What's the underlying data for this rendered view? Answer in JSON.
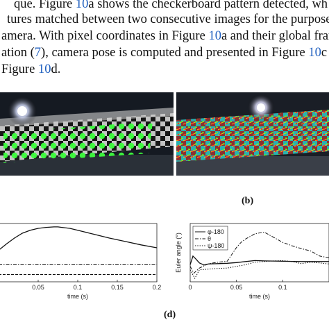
{
  "text_lines": [
    {
      "segments": [
        {
          "text": "que.  Figure ",
          "ref": false
        },
        {
          "text": "10",
          "ref": true
        },
        {
          "text": "a shows the checkerboard pattern detected, wh",
          "ref": false
        }
      ]
    },
    {
      "segments": [
        {
          "text": "tures matched between two consecutive images for the purpose o",
          "ref": false
        }
      ]
    },
    {
      "segments": [
        {
          "text": "amera.  With pixel coordinates in Figure ",
          "ref": false
        },
        {
          "text": "10",
          "ref": true
        },
        {
          "text": "a and their global fram",
          "ref": false
        }
      ]
    },
    {
      "segments": [
        {
          "text": "ation (",
          "ref": false
        },
        {
          "text": "7",
          "ref": true
        },
        {
          "text": "), camera pose is computed and presented in Figure ",
          "ref": false
        },
        {
          "text": "10",
          "ref": true
        },
        {
          "text": "c fo",
          "ref": false
        }
      ]
    },
    {
      "segments": [
        {
          "text": " Figure ",
          "ref": false
        },
        {
          "text": "10",
          "ref": true
        },
        {
          "text": "d.",
          "ref": false
        }
      ]
    }
  ],
  "captions": {
    "b": "(b)",
    "d": "(d)"
  },
  "chart_data": [
    {
      "type": "line",
      "x_ticks": [
        "0.05",
        "0.1",
        "0.15",
        "0.2"
      ],
      "xlabel": "time (s)",
      "xlim": [
        0.0,
        0.2
      ],
      "series": [
        {
          "style": "solid",
          "x": [
            0.0,
            0.01,
            0.02,
            0.03,
            0.04,
            0.05,
            0.06,
            0.07,
            0.075,
            0.08,
            0.09,
            0.1,
            0.12,
            0.14,
            0.16,
            0.18,
            0.2
          ],
          "y": [
            0.55,
            0.68,
            0.8,
            0.9,
            0.96,
            1.0,
            1.02,
            1.03,
            1.03,
            1.02,
            1.0,
            0.96,
            0.88,
            0.8,
            0.73,
            0.66,
            0.6
          ]
        },
        {
          "style": "dash-dot",
          "x": [
            0.0,
            0.2
          ],
          "y": [
            0.25,
            0.25
          ]
        },
        {
          "style": "dashed",
          "x": [
            0.0,
            0.2
          ],
          "y": [
            0.05,
            0.05
          ]
        }
      ],
      "ylim": [
        -0.1,
        1.1
      ]
    },
    {
      "type": "line",
      "x_ticks": [
        "0",
        "0.05",
        "0.1"
      ],
      "xlabel": "time (s)",
      "ylabel": "Euler angle (°)",
      "xlim": [
        0.0,
        0.15
      ],
      "legend": "top-left",
      "series": [
        {
          "name": "φ-180",
          "style": "solid",
          "x": [
            0.0,
            0.003,
            0.006,
            0.01,
            0.015,
            0.02,
            0.03,
            0.04,
            0.05,
            0.06,
            0.07,
            0.08,
            0.1,
            0.12,
            0.15
          ],
          "y": [
            -1.5,
            1.0,
            0.2,
            -1.0,
            -1.6,
            -1.3,
            -1.2,
            -1.1,
            -0.9,
            -0.6,
            -0.3,
            -0.4,
            -0.5,
            -0.6,
            -0.6
          ]
        },
        {
          "name": "θ",
          "style": "dash-dot",
          "x": [
            0.0,
            0.004,
            0.01,
            0.02,
            0.03,
            0.04,
            0.045,
            0.05,
            0.055,
            0.06,
            0.07,
            0.08,
            0.09,
            0.1,
            0.11,
            0.12,
            0.13,
            0.14,
            0.15
          ],
          "y": [
            -2.0,
            -4.0,
            -2.5,
            -1.2,
            -0.8,
            -0.5,
            1.5,
            3.5,
            5.0,
            6.0,
            7.5,
            8.0,
            6.5,
            5.0,
            4.0,
            3.2,
            2.5,
            1.0,
            0.5
          ]
        },
        {
          "name": "ψ-180",
          "style": "dotted",
          "x": [
            0.0,
            0.005,
            0.01,
            0.02,
            0.03,
            0.04,
            0.05,
            0.06,
            0.07,
            0.08,
            0.09,
            0.1,
            0.11,
            0.12,
            0.13,
            0.14,
            0.15
          ],
          "y": [
            -3.0,
            -5.5,
            -3.0,
            -2.8,
            -2.6,
            -2.5,
            -2.0,
            -1.5,
            -0.8,
            -0.6,
            -0.4,
            -0.3,
            -0.6,
            -1.2,
            -0.8,
            -1.0,
            -1.3
          ]
        }
      ],
      "ylim": [
        -6.5,
        10.5
      ]
    }
  ]
}
